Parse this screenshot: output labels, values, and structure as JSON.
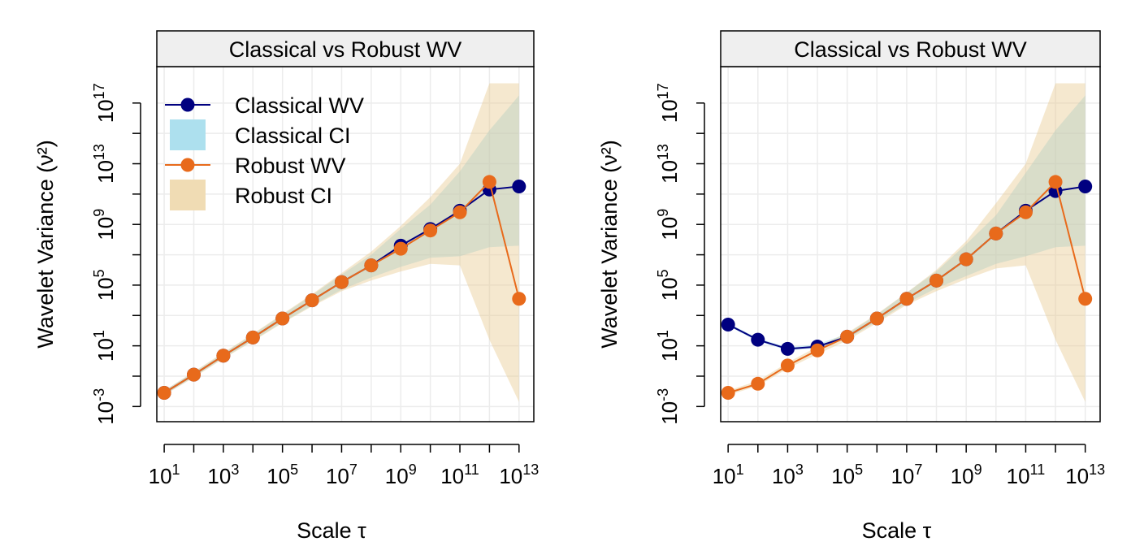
{
  "chart_data": [
    {
      "type": "line",
      "title": "Classical vs Robust WV",
      "xlabel": "Scale τ",
      "ylabel": "Wavelet Variance (ν²)",
      "xscale": "log10",
      "yscale": "log10",
      "grid": true,
      "legend_position": "top-left",
      "x_ticks": [
        {
          "exp": 1,
          "label": "10",
          "sup": "1"
        },
        {
          "exp": 3,
          "label": "10",
          "sup": "3"
        },
        {
          "exp": 5,
          "label": "10",
          "sup": "5"
        },
        {
          "exp": 7,
          "label": "10",
          "sup": "7"
        },
        {
          "exp": 9,
          "label": "10",
          "sup": "9"
        },
        {
          "exp": 11,
          "label": "10",
          "sup": "11"
        },
        {
          "exp": 13,
          "label": "10",
          "sup": "13"
        }
      ],
      "y_ticks": [
        {
          "exp": -3,
          "label": "10",
          "sup": "-3"
        },
        {
          "exp": 1,
          "label": "10",
          "sup": "1"
        },
        {
          "exp": 5,
          "label": "10",
          "sup": "5"
        },
        {
          "exp": 9,
          "label": "10",
          "sup": "9"
        },
        {
          "exp": 13,
          "label": "10",
          "sup": "13"
        },
        {
          "exp": 17,
          "label": "10",
          "sup": "17"
        }
      ],
      "legend": [
        {
          "label": "Classical WV",
          "kind": "line-point",
          "color": "#000080"
        },
        {
          "label": "Classical CI",
          "kind": "box",
          "color": "#ade0ee"
        },
        {
          "label": "Robust WV",
          "kind": "line-point",
          "color": "#e86a1b"
        },
        {
          "label": "Robust CI",
          "kind": "box",
          "color": "#f0dcb4"
        }
      ],
      "series": [
        {
          "name": "Classical WV",
          "color": "#000080",
          "x_exp": [
            1,
            2,
            3,
            4,
            5,
            6,
            7,
            8,
            9,
            10,
            11,
            12,
            13
          ],
          "y_exp": [
            -2.1,
            -0.9,
            0.35,
            1.55,
            2.8,
            4.0,
            5.2,
            6.3,
            7.6,
            8.7,
            9.9,
            11.3,
            11.5
          ],
          "ci_lower_exp": [
            -2.25,
            -1.05,
            0.2,
            1.35,
            2.55,
            3.65,
            4.7,
            5.5,
            6.2,
            6.8,
            6.9,
            7.5,
            7.6
          ],
          "ci_upper_exp": [
            -1.95,
            -0.75,
            0.5,
            1.75,
            3.05,
            4.35,
            5.7,
            7.0,
            8.7,
            10.3,
            12.5,
            15.2,
            17.5
          ]
        },
        {
          "name": "Robust WV",
          "color": "#e86a1b",
          "x_exp": [
            1,
            2,
            3,
            4,
            5,
            6,
            7,
            8,
            9,
            10,
            11,
            12,
            13
          ],
          "y_exp": [
            -2.1,
            -0.9,
            0.35,
            1.55,
            2.8,
            4.0,
            5.2,
            6.3,
            7.4,
            8.6,
            9.8,
            11.8,
            4.1
          ],
          "ci_lower_exp": [
            -2.25,
            -1.1,
            0.15,
            1.3,
            2.5,
            3.6,
            4.6,
            5.3,
            5.9,
            6.4,
            6.3,
            1.4,
            -2.7
          ],
          "ci_upper_exp": [
            -1.95,
            -0.7,
            0.55,
            1.8,
            3.1,
            4.4,
            5.8,
            7.2,
            8.9,
            10.8,
            13.0,
            18.3,
            18.3
          ]
        }
      ]
    },
    {
      "type": "line",
      "title": "Classical vs Robust WV",
      "xlabel": "Scale τ",
      "ylabel": "Wavelet Variance (ν²)",
      "xscale": "log10",
      "yscale": "log10",
      "grid": true,
      "x_ticks": [
        {
          "exp": 1,
          "label": "10",
          "sup": "1"
        },
        {
          "exp": 3,
          "label": "10",
          "sup": "3"
        },
        {
          "exp": 5,
          "label": "10",
          "sup": "5"
        },
        {
          "exp": 7,
          "label": "10",
          "sup": "7"
        },
        {
          "exp": 9,
          "label": "10",
          "sup": "9"
        },
        {
          "exp": 11,
          "label": "10",
          "sup": "11"
        },
        {
          "exp": 13,
          "label": "10",
          "sup": "13"
        }
      ],
      "y_ticks": [
        {
          "exp": -3,
          "label": "10",
          "sup": "-3"
        },
        {
          "exp": 1,
          "label": "10",
          "sup": "1"
        },
        {
          "exp": 5,
          "label": "10",
          "sup": "5"
        },
        {
          "exp": 9,
          "label": "10",
          "sup": "9"
        },
        {
          "exp": 13,
          "label": "10",
          "sup": "13"
        },
        {
          "exp": 17,
          "label": "10",
          "sup": "17"
        }
      ],
      "series": [
        {
          "name": "Classical WV",
          "color": "#000080",
          "x_exp": [
            1,
            2,
            3,
            4,
            5,
            6,
            7,
            8,
            9,
            10,
            11,
            12,
            13
          ],
          "y_exp": [
            2.4,
            1.4,
            0.8,
            0.95,
            1.6,
            2.8,
            4.1,
            5.3,
            6.7,
            8.4,
            9.9,
            11.2,
            11.5
          ],
          "ci_lower_exp": [
            2.3,
            1.3,
            0.7,
            0.85,
            1.45,
            2.6,
            3.8,
            4.8,
            5.6,
            6.4,
            6.9,
            7.5,
            7.6
          ],
          "ci_upper_exp": [
            2.5,
            1.5,
            0.9,
            1.1,
            1.8,
            3.05,
            4.5,
            5.9,
            7.7,
            9.6,
            12.4,
            15.2,
            17.5
          ]
        },
        {
          "name": "Robust WV",
          "color": "#e86a1b",
          "x_exp": [
            1,
            2,
            3,
            4,
            5,
            6,
            7,
            8,
            9,
            10,
            11,
            12,
            13
          ],
          "y_exp": [
            -2.1,
            -1.5,
            -0.3,
            0.7,
            1.6,
            2.8,
            4.1,
            5.3,
            6.7,
            8.4,
            9.8,
            11.8,
            4.1
          ],
          "ci_lower_exp": [
            -2.25,
            -1.65,
            -0.5,
            0.45,
            1.35,
            2.5,
            3.7,
            4.6,
            5.4,
            6.1,
            6.3,
            1.4,
            -2.7
          ],
          "ci_upper_exp": [
            -1.95,
            -1.3,
            -0.1,
            0.95,
            1.85,
            3.1,
            4.5,
            6.0,
            7.9,
            10.4,
            13.0,
            18.3,
            18.3
          ]
        }
      ]
    }
  ]
}
